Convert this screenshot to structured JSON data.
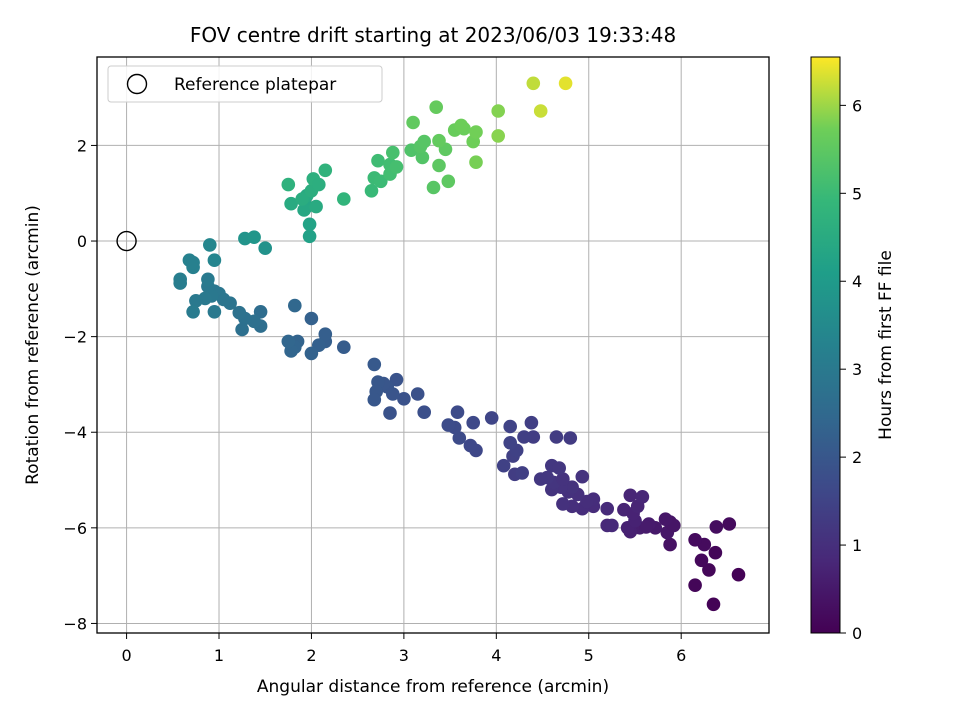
{
  "chart_data": {
    "type": "scatter",
    "title": "FOV centre drift starting at 2023/06/03 19:33:48",
    "xlabel": "Angular distance from reference (arcmin)",
    "ylabel": "Rotation from reference (arcmin)",
    "xlim": [
      -0.32,
      6.95
    ],
    "ylim": [
      -8.2,
      3.85
    ],
    "xticks": [
      0,
      1,
      2,
      3,
      4,
      5,
      6
    ],
    "yticks": [
      -8,
      -6,
      -4,
      -2,
      0,
      2
    ],
    "xtick_labels": [
      "0",
      "1",
      "2",
      "3",
      "4",
      "5",
      "6"
    ],
    "ytick_labels": [
      "−8",
      "−6",
      "−4",
      "−2",
      "0",
      "2"
    ],
    "grid": true,
    "legend": {
      "location": "top-left",
      "entries": [
        {
          "label": "Reference platepar",
          "marker": "open-circle",
          "x": 0,
          "y": 0
        }
      ]
    },
    "colorbar": {
      "label": "Hours from first FF file",
      "colormap": "viridis",
      "range": [
        0,
        6.55
      ],
      "ticks": [
        0,
        1,
        2,
        3,
        4,
        5,
        6
      ],
      "tick_labels": [
        "0",
        "1",
        "2",
        "3",
        "4",
        "5",
        "6"
      ]
    },
    "points": [
      [
        6.35,
        -7.6,
        0.05
      ],
      [
        6.15,
        -7.2,
        0.1
      ],
      [
        6.62,
        -6.98,
        0.05
      ],
      [
        6.3,
        -6.88,
        0.12
      ],
      [
        6.22,
        -6.68,
        0.15
      ],
      [
        6.37,
        -6.52,
        0.1
      ],
      [
        6.25,
        -6.35,
        0.2
      ],
      [
        6.15,
        -6.25,
        0.22
      ],
      [
        6.38,
        -5.98,
        0.25
      ],
      [
        6.52,
        -5.92,
        0.2
      ],
      [
        5.88,
        -6.35,
        0.35
      ],
      [
        5.85,
        -6.1,
        0.45
      ],
      [
        5.88,
        -5.88,
        0.4
      ],
      [
        5.92,
        -5.95,
        0.42
      ],
      [
        5.83,
        -5.82,
        0.45
      ],
      [
        5.72,
        -6.0,
        0.5
      ],
      [
        5.65,
        -5.92,
        0.55
      ],
      [
        5.55,
        -6.0,
        0.6
      ],
      [
        5.62,
        -5.98,
        0.55
      ],
      [
        5.45,
        -6.08,
        0.65
      ],
      [
        5.42,
        -6.0,
        0.68
      ],
      [
        5.5,
        -5.85,
        0.7
      ],
      [
        5.38,
        -5.62,
        0.75
      ],
      [
        5.48,
        -5.7,
        0.72
      ],
      [
        5.53,
        -5.55,
        0.75
      ],
      [
        5.45,
        -5.32,
        0.78
      ],
      [
        5.58,
        -5.35,
        0.8
      ],
      [
        5.2,
        -5.95,
        0.85
      ],
      [
        5.25,
        -5.95,
        0.88
      ],
      [
        5.2,
        -5.6,
        0.9
      ],
      [
        5.05,
        -5.55,
        0.92
      ],
      [
        5.05,
        -5.4,
        0.95
      ],
      [
        4.93,
        -5.6,
        0.95
      ],
      [
        4.98,
        -5.45,
        0.98
      ],
      [
        4.82,
        -5.55,
        1.0
      ],
      [
        4.72,
        -5.5,
        1.05
      ],
      [
        4.88,
        -5.3,
        1.02
      ],
      [
        4.78,
        -5.25,
        1.05
      ],
      [
        4.82,
        -5.15,
        1.08
      ],
      [
        4.7,
        -5.15,
        1.1
      ],
      [
        4.6,
        -5.2,
        1.12
      ],
      [
        4.62,
        -5.05,
        1.15
      ],
      [
        4.55,
        -4.95,
        1.18
      ],
      [
        4.48,
        -4.98,
        1.2
      ],
      [
        4.72,
        -4.98,
        1.1
      ],
      [
        4.6,
        -4.7,
        1.2
      ],
      [
        4.68,
        -4.75,
        1.18
      ],
      [
        4.93,
        -4.93,
        1.1
      ],
      [
        4.8,
        -4.12,
        1.3
      ],
      [
        4.65,
        -4.1,
        1.32
      ],
      [
        4.4,
        -4.1,
        1.35
      ],
      [
        4.3,
        -4.1,
        1.4
      ],
      [
        4.38,
        -3.8,
        1.4
      ],
      [
        4.2,
        -4.88,
        1.35
      ],
      [
        4.28,
        -4.85,
        1.38
      ],
      [
        4.18,
        -4.5,
        1.42
      ],
      [
        4.22,
        -4.38,
        1.45
      ],
      [
        4.15,
        -4.22,
        1.48
      ],
      [
        4.08,
        -4.7,
        1.45
      ],
      [
        4.15,
        -3.88,
        1.5
      ],
      [
        3.95,
        -3.7,
        1.55
      ],
      [
        3.78,
        -4.38,
        1.6
      ],
      [
        3.72,
        -4.28,
        1.62
      ],
      [
        3.75,
        -3.8,
        1.65
      ],
      [
        3.6,
        -4.12,
        1.68
      ],
      [
        3.55,
        -3.9,
        1.7
      ],
      [
        3.48,
        -3.85,
        1.72
      ],
      [
        3.58,
        -3.58,
        1.7
      ],
      [
        3.22,
        -3.58,
        1.8
      ],
      [
        3.15,
        -3.2,
        1.85
      ],
      [
        3.0,
        -3.3,
        1.88
      ],
      [
        2.92,
        -2.9,
        1.9
      ],
      [
        2.88,
        -3.2,
        1.92
      ],
      [
        2.85,
        -3.6,
        1.88
      ],
      [
        2.82,
        -3.05,
        1.95
      ],
      [
        2.78,
        -2.98,
        1.98
      ],
      [
        2.72,
        -2.95,
        2.0
      ],
      [
        2.7,
        -3.15,
        2.02
      ],
      [
        2.68,
        -3.32,
        2.0
      ],
      [
        2.68,
        -2.58,
        2.05
      ],
      [
        2.35,
        -2.22,
        2.15
      ],
      [
        2.15,
        -2.1,
        2.2
      ],
      [
        2.15,
        -1.95,
        2.22
      ],
      [
        2.08,
        -2.18,
        2.25
      ],
      [
        2.0,
        -1.62,
        2.28
      ],
      [
        2.0,
        -2.35,
        2.3
      ],
      [
        1.85,
        -2.1,
        2.35
      ],
      [
        1.82,
        -2.22,
        2.38
      ],
      [
        1.78,
        -2.3,
        2.4
      ],
      [
        1.75,
        -2.1,
        2.42
      ],
      [
        1.82,
        -1.35,
        2.45
      ],
      [
        1.45,
        -1.48,
        2.6
      ],
      [
        1.45,
        -1.78,
        2.65
      ],
      [
        1.38,
        -1.68,
        2.7
      ],
      [
        1.28,
        -1.62,
        2.75
      ],
      [
        1.25,
        -1.85,
        2.72
      ],
      [
        1.22,
        -1.5,
        2.78
      ],
      [
        1.12,
        -1.3,
        2.82
      ],
      [
        1.05,
        -1.22,
        2.85
      ],
      [
        1.0,
        -1.1,
        2.9
      ],
      [
        0.95,
        -1.05,
        2.92
      ],
      [
        0.92,
        -1.15,
        2.95
      ],
      [
        0.88,
        -0.95,
        2.95
      ],
      [
        0.85,
        -1.2,
        2.98
      ],
      [
        0.75,
        -1.25,
        3.0
      ],
      [
        0.88,
        -0.8,
        3.02
      ],
      [
        0.72,
        -1.48,
        3.05
      ],
      [
        0.95,
        -1.48,
        3.0
      ],
      [
        0.72,
        -0.55,
        3.2
      ],
      [
        0.68,
        -0.4,
        3.25
      ],
      [
        0.58,
        -0.8,
        3.15
      ],
      [
        0.58,
        -0.88,
        3.12
      ],
      [
        0.72,
        -0.45,
        3.22
      ],
      [
        0.95,
        -0.4,
        3.35
      ],
      [
        0.9,
        -0.08,
        3.4
      ],
      [
        1.28,
        0.05,
        3.8
      ],
      [
        1.38,
        0.08,
        3.85
      ],
      [
        1.5,
        -0.15,
        3.75
      ],
      [
        1.98,
        0.1,
        4.2
      ],
      [
        1.98,
        0.35,
        4.25
      ],
      [
        1.95,
        0.72,
        4.35
      ],
      [
        1.92,
        0.65,
        4.38
      ],
      [
        1.95,
        0.95,
        4.45
      ],
      [
        2.05,
        0.72,
        4.5
      ],
      [
        1.78,
        0.78,
        4.48
      ],
      [
        1.9,
        0.88,
        4.55
      ],
      [
        2.0,
        1.05,
        4.6
      ],
      [
        2.02,
        1.3,
        4.65
      ],
      [
        2.08,
        1.18,
        4.62
      ],
      [
        1.75,
        1.18,
        4.7
      ],
      [
        2.15,
        1.48,
        4.75
      ],
      [
        2.35,
        0.88,
        4.8
      ],
      [
        2.65,
        1.05,
        4.95
      ],
      [
        2.68,
        1.32,
        5.0
      ],
      [
        2.75,
        1.25,
        5.02
      ],
      [
        2.72,
        1.68,
        5.05
      ],
      [
        2.85,
        1.6,
        5.1
      ],
      [
        2.85,
        1.4,
        5.12
      ],
      [
        2.92,
        1.55,
        5.15
      ],
      [
        2.88,
        1.85,
        5.18
      ],
      [
        3.08,
        1.9,
        5.3
      ],
      [
        3.2,
        1.75,
        5.35
      ],
      [
        3.18,
        1.98,
        5.38
      ],
      [
        3.22,
        2.08,
        5.4
      ],
      [
        3.32,
        1.12,
        5.42
      ],
      [
        3.38,
        1.58,
        5.48
      ],
      [
        3.48,
        1.25,
        5.5
      ],
      [
        3.45,
        1.92,
        5.52
      ],
      [
        3.1,
        2.48,
        5.55
      ],
      [
        3.38,
        2.1,
        5.58
      ],
      [
        3.35,
        2.8,
        5.6
      ],
      [
        3.55,
        2.32,
        5.65
      ],
      [
        3.65,
        2.35,
        5.68
      ],
      [
        3.62,
        2.42,
        5.7
      ],
      [
        3.75,
        2.08,
        5.72
      ],
      [
        3.78,
        2.28,
        5.75
      ],
      [
        3.78,
        1.65,
        5.78
      ],
      [
        4.02,
        2.72,
        5.85
      ],
      [
        4.02,
        2.2,
        5.88
      ],
      [
        4.4,
        3.3,
        6.2
      ],
      [
        4.48,
        2.72,
        6.25
      ],
      [
        4.75,
        3.3,
        6.4
      ]
    ]
  }
}
